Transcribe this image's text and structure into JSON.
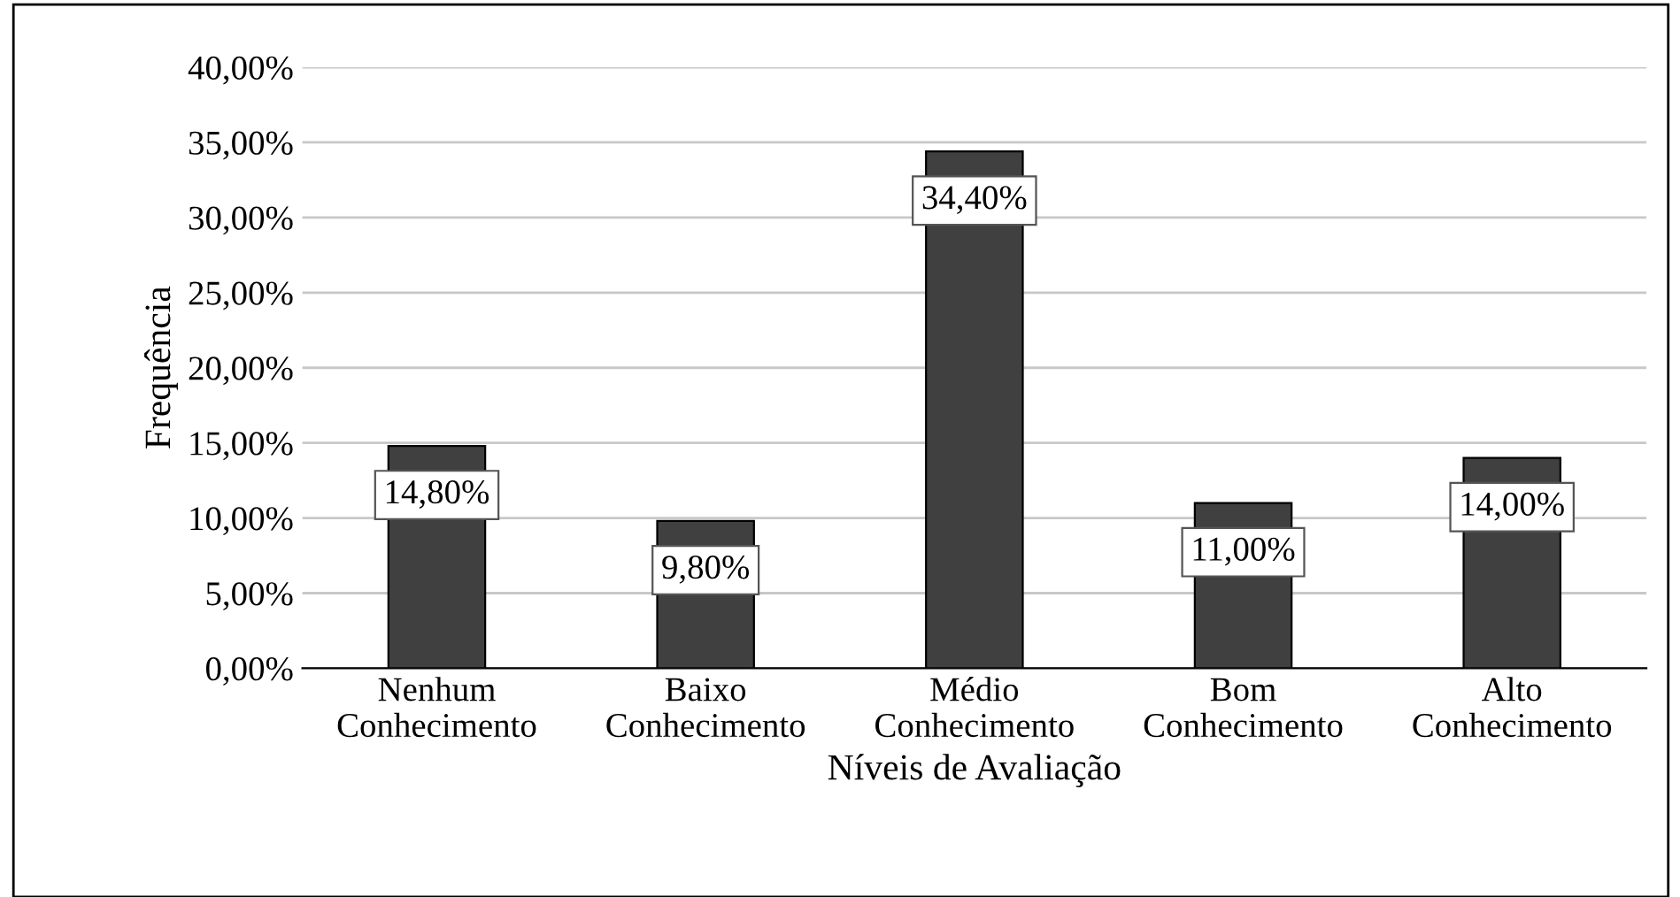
{
  "chart_data": {
    "type": "bar",
    "xlabel": "Níveis de Avaliação",
    "ylabel": "Frequência",
    "categories": [
      "Nenhum\nConhecimento",
      "Baixo\nConhecimento",
      "Médio\nConhecimento",
      "Bom\nConhecimento",
      "Alto\nConhecimento"
    ],
    "values": [
      14.8,
      9.8,
      34.4,
      11.0,
      14.0
    ],
    "value_labels": [
      "14,80%",
      "9,80%",
      "34,40%",
      "11,00%",
      "14,00%"
    ],
    "color": "#404040",
    "ylim": [
      0,
      40
    ],
    "yticks": [
      {
        "value": 0,
        "label": "0,00%"
      },
      {
        "value": 5,
        "label": "5,00%"
      },
      {
        "value": 10,
        "label": "10,00%"
      },
      {
        "value": 15,
        "label": "15,00%"
      },
      {
        "value": 20,
        "label": "20,00%"
      },
      {
        "value": 25,
        "label": "25,00%"
      },
      {
        "value": 30,
        "label": "30,00%"
      },
      {
        "value": 35,
        "label": "35,00%"
      },
      {
        "value": 40,
        "label": "40,00%"
      }
    ],
    "grid": "y",
    "legend": false
  }
}
